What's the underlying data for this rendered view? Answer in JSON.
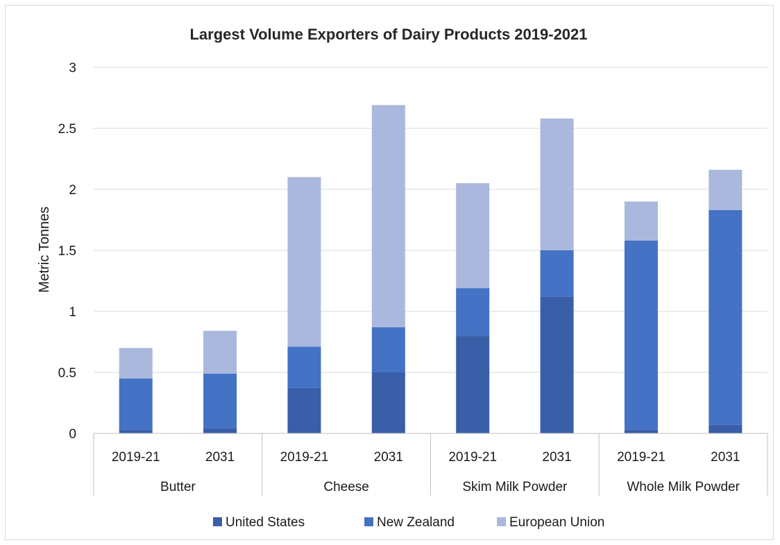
{
  "chart_data": {
    "type": "bar",
    "stacked": true,
    "title": "Largest Volume Exporters of Dairy Products 2019-2021",
    "ylabel": "Metric Tonnes",
    "xlabel": "",
    "ylim": [
      0,
      3
    ],
    "yticks": [
      "0",
      "0.5",
      "1",
      "1.5",
      "2",
      "2.5",
      "3"
    ],
    "ytick_values": [
      0,
      0.5,
      1,
      1.5,
      2,
      2.5,
      3
    ],
    "grid": true,
    "legend_position": "bottom",
    "groups": [
      {
        "label": "Butter",
        "categories": [
          "2019-21",
          "2031"
        ]
      },
      {
        "label": "Cheese",
        "categories": [
          "2019-21",
          "2031"
        ]
      },
      {
        "label": "Skim Milk Powder",
        "categories": [
          "2019-21",
          "2031"
        ]
      },
      {
        "label": "Whole Milk Powder",
        "categories": [
          "2019-21",
          "2031"
        ]
      }
    ],
    "categories": [
      "Butter 2019-21",
      "Butter 2031",
      "Cheese 2019-21",
      "Cheese 2031",
      "Skim Milk Powder 2019-21",
      "Skim Milk Powder 2031",
      "Whole Milk Powder 2019-21",
      "Whole Milk Powder 2031"
    ],
    "series": [
      {
        "name": "United States",
        "color": "#3a5ea8",
        "values": [
          0.03,
          0.04,
          0.37,
          0.5,
          0.8,
          1.12,
          0.03,
          0.07
        ]
      },
      {
        "name": "New Zealand",
        "color": "#4472c4",
        "values": [
          0.42,
          0.45,
          0.34,
          0.37,
          0.39,
          0.38,
          1.55,
          1.76
        ]
      },
      {
        "name": "European Union",
        "color": "#a9b8dc",
        "values": [
          0.25,
          0.35,
          1.39,
          1.82,
          0.86,
          1.08,
          0.32,
          0.33
        ]
      }
    ]
  }
}
